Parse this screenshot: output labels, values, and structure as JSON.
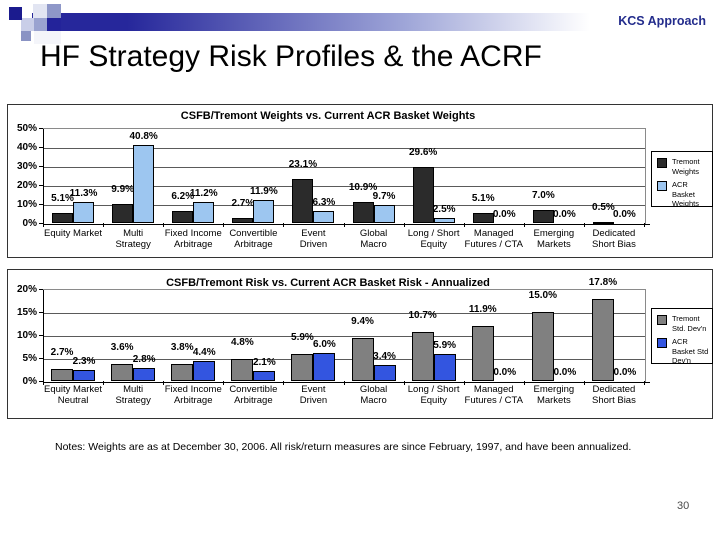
{
  "slide": {
    "kicker": "KCS Approach",
    "title": "HF Strategy Risk Profiles & the ACRF",
    "notes": "Notes:  Weights are as at December 30, 2006.  All risk/return measures are since February, 1997, and have been annualized.",
    "page_number": "30"
  },
  "colors": {
    "header_navy": "#26279B",
    "tremont_weights_bar": "#2B2B2B",
    "acr_basket_weights_bar": "#9DC6F0",
    "tremont_std_bar": "#808080",
    "acr_basket_std_bar": "#3355E0"
  },
  "chart_data": [
    {
      "type": "bar",
      "title": "CSFB/Tremont Weights vs. Current ACR Basket Weights",
      "ylim": [
        0,
        50
      ],
      "ytick_values": [
        0,
        10,
        20,
        30,
        40,
        50
      ],
      "ytick_labels": [
        "0%",
        "10%",
        "20%",
        "30%",
        "40%",
        "50%"
      ],
      "grid": true,
      "legend_position": "right",
      "categories": [
        [
          "Equity Market"
        ],
        [
          "Multi",
          "Strategy"
        ],
        [
          "Fixed Income",
          "Arbitrage"
        ],
        [
          "Convertible",
          "Arbitrage"
        ],
        [
          "Event",
          "Driven"
        ],
        [
          "Global",
          "Macro"
        ],
        [
          "Long / Short",
          "Equity"
        ],
        [
          "Managed",
          "Futures / CTA"
        ],
        [
          "Emerging",
          "Markets"
        ],
        [
          "Dedicated",
          "Short Bias"
        ]
      ],
      "series": [
        {
          "name": "Tremont Weights",
          "color": "#2B2B2B",
          "values": [
            5.1,
            9.9,
            6.2,
            2.7,
            23.1,
            10.9,
            29.6,
            5.1,
            7.0,
            0.5
          ],
          "labels": [
            "5.1%",
            "9.9%",
            "6.2%",
            "2.7%",
            "23.1%",
            "10.9%",
            "29.6%",
            "5.1%",
            "7.0%",
            "0.5%"
          ]
        },
        {
          "name": "ACR Basket Weights",
          "color": "#9DC6F0",
          "values": [
            11.3,
            40.8,
            11.2,
            11.9,
            6.3,
            9.7,
            2.5,
            0.0,
            0.0,
            0.0
          ],
          "labels": [
            "11.3%",
            "40.8%",
            "11.2%",
            "11.9%",
            "6.3%",
            "9.7%",
            "2.5%",
            "0.0%",
            "0.0%",
            "0.0%"
          ]
        }
      ]
    },
    {
      "type": "bar",
      "title": "CSFB/Tremont Risk vs. Current ACR Basket Risk - Annualized",
      "ylim": [
        0,
        20
      ],
      "ytick_values": [
        0,
        5,
        10,
        15,
        20
      ],
      "ytick_labels": [
        "0%",
        "5%",
        "10%",
        "15%",
        "20%"
      ],
      "grid": true,
      "legend_position": "right",
      "categories": [
        [
          "Equity Market",
          "Neutral"
        ],
        [
          "Multi",
          "Strategy"
        ],
        [
          "Fixed Income",
          "Arbitrage"
        ],
        [
          "Convertible",
          "Arbitrage"
        ],
        [
          "Event",
          "Driven"
        ],
        [
          "Global",
          "Macro"
        ],
        [
          "Long / Short",
          "Equity"
        ],
        [
          "Managed",
          "Futures / CTA"
        ],
        [
          "Emerging",
          "Markets"
        ],
        [
          "Dedicated",
          "Short Bias"
        ]
      ],
      "series": [
        {
          "name": "Tremont Std. Dev'n",
          "color": "#808080",
          "values": [
            2.7,
            3.6,
            3.8,
            4.8,
            5.9,
            9.4,
            10.7,
            11.9,
            15.0,
            17.8
          ],
          "labels": [
            "2.7%",
            "3.6%",
            "3.8%",
            "4.8%",
            "5.9%",
            "9.4%",
            "10.7%",
            "11.9%",
            "15.0%",
            "17.8%"
          ]
        },
        {
          "name": "ACR Basket Std Dev'n",
          "color": "#3355E0",
          "values": [
            2.3,
            2.8,
            4.4,
            2.1,
            6.0,
            3.4,
            5.9,
            0.0,
            0.0,
            0.0
          ],
          "labels": [
            "2.3%",
            "2.8%",
            "4.4%",
            "2.1%",
            "6.0%",
            "3.4%",
            "5.9%",
            "0.0%",
            "0.0%",
            "0.0%"
          ]
        }
      ]
    }
  ]
}
